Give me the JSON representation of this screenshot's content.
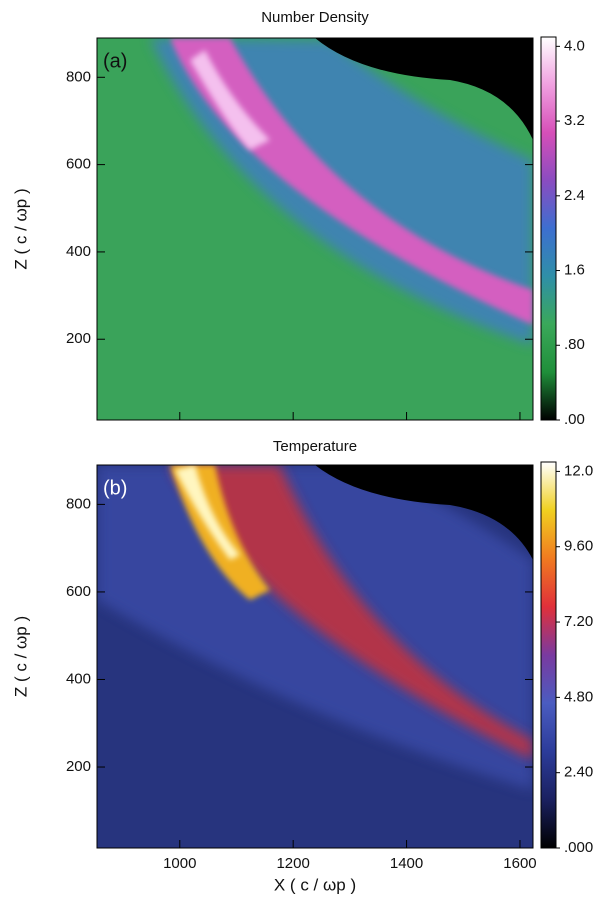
{
  "chart_data": [
    {
      "type": "heatmap",
      "title": "Number Density",
      "panel_label": "(a)",
      "y_label": "Z ( c / ωp )",
      "xlim": [
        854,
        1623
      ],
      "ylim": [
        15,
        890
      ],
      "xticks": [
        1000,
        1200,
        1400,
        1600
      ],
      "yticks": [
        200,
        400,
        600,
        800
      ],
      "colormap": [
        "#000000",
        "#1f8f3a",
        "#3aa85a",
        "#2f8fa8",
        "#3d6fd0",
        "#8a4cc0",
        "#d64fb8",
        "#f0a0e0",
        "#ffffff"
      ],
      "colorbar": {
        "lim": [
          0,
          4.1
        ],
        "ticks": [
          {
            "value": 0,
            "label": ".00"
          },
          {
            "value": 0.8,
            "label": ".80"
          },
          1.6,
          2.4,
          3.2,
          {
            "value": 4.0,
            "label": "4.0"
          }
        ]
      }
    },
    {
      "type": "heatmap",
      "title": "Temperature",
      "panel_label": "(b)",
      "y_label": "Z ( c / ωp )",
      "x_label": "X ( c / ωp )",
      "xlim": [
        854,
        1623
      ],
      "ylim": [
        15,
        890
      ],
      "xticks": [
        1000,
        1200,
        1400,
        1600
      ],
      "yticks": [
        200,
        400,
        600,
        800
      ],
      "colormap": [
        "#000000",
        "#1a2060",
        "#2c3c9a",
        "#4a5cc0",
        "#7a3aa0",
        "#e0303a",
        "#f07a20",
        "#f0d020",
        "#ffffff"
      ],
      "colorbar": {
        "lim": [
          0,
          12.3
        ],
        "ticks": [
          {
            "value": 0,
            "label": ".000"
          },
          {
            "value": 2.4,
            "label": "2.40"
          },
          {
            "value": 4.8,
            "label": "4.80"
          },
          {
            "value": 7.2,
            "label": "7.20"
          },
          {
            "value": 9.6,
            "label": "9.60"
          },
          {
            "value": 12.0,
            "label": "12.0"
          }
        ]
      }
    }
  ]
}
